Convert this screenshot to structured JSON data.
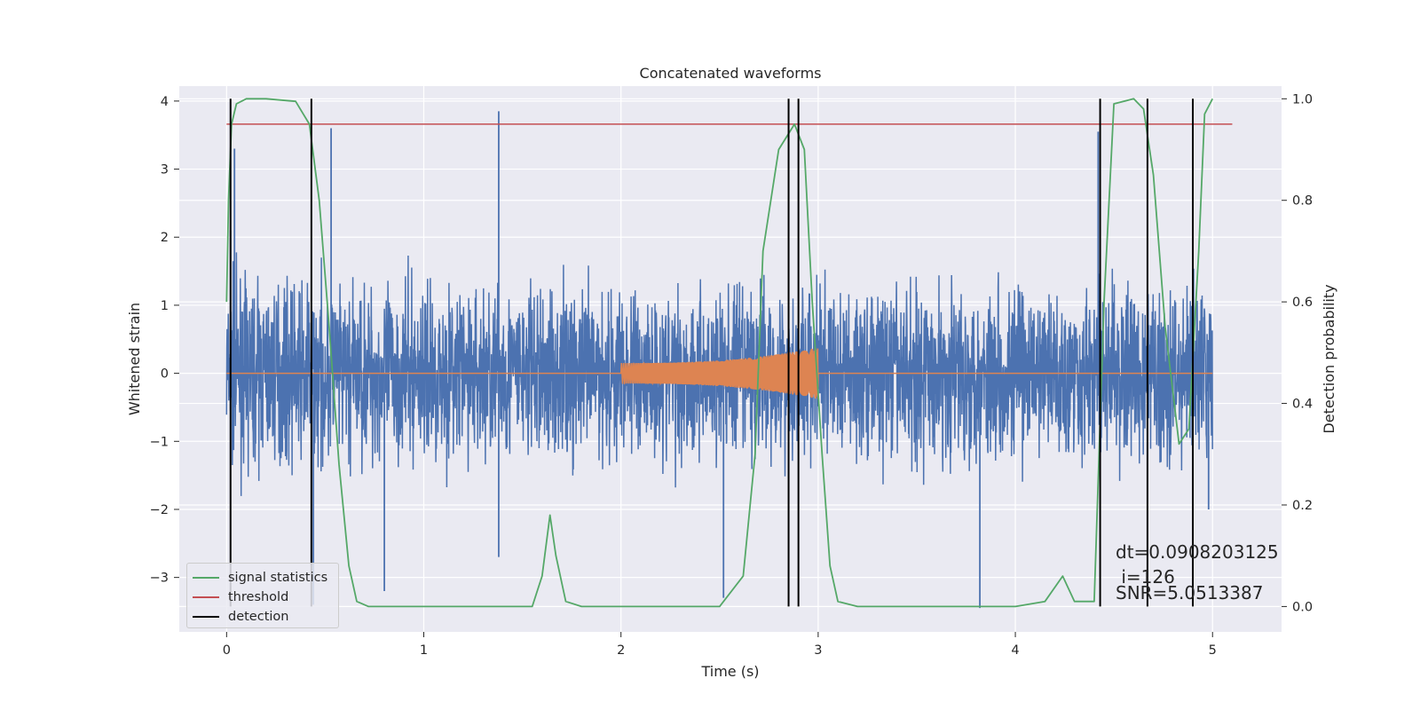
{
  "chart_data": {
    "type": "line",
    "title": "Concatenated waveforms",
    "xlabel": "Time (s)",
    "ylabel": "Whitened strain",
    "y2label": "Detection probability",
    "xlim": [
      -0.24,
      5.35
    ],
    "ylim": [
      -3.8,
      4.22
    ],
    "y2lim": [
      -0.05,
      1.025
    ],
    "xticks": [
      "0",
      "1",
      "2",
      "3",
      "4",
      "5"
    ],
    "yticks": [
      "−3",
      "−2",
      "−1",
      "0",
      "1",
      "2",
      "3",
      "4"
    ],
    "y2ticks": [
      "0.0",
      "0.2",
      "0.4",
      "0.6",
      "0.8",
      "1.0"
    ],
    "grid": true,
    "legend_position": "lower-left",
    "series": [
      {
        "key": "strain",
        "kind": "noise",
        "axis": "left",
        "color": "#4c72b0",
        "x_range": [
          0,
          5
        ],
        "typical_range": [
          -2.0,
          2.0
        ],
        "spikes": [
          [
            0.02,
            2.1
          ],
          [
            0.04,
            3.3
          ],
          [
            0.53,
            3.6
          ],
          [
            1.38,
            3.85
          ],
          [
            4.42,
            3.55
          ],
          [
            1.38,
            -2.7
          ],
          [
            0.44,
            -3.4
          ],
          [
            0.8,
            -3.2
          ],
          [
            3.82,
            -3.45
          ],
          [
            2.52,
            -3.3
          ],
          [
            4.98,
            -2.0
          ]
        ]
      },
      {
        "key": "template",
        "kind": "chirp",
        "axis": "left",
        "color": "#dd8452",
        "x_range": [
          0,
          5
        ],
        "chirp_range": [
          2.0,
          3.0
        ],
        "amp_start": 0.15,
        "amp_end": 0.38
      },
      {
        "name": "signal statistics",
        "axis": "right",
        "color": "#55a868",
        "points": [
          [
            0.0,
            0.6
          ],
          [
            0.01,
            0.8
          ],
          [
            0.025,
            0.95
          ],
          [
            0.05,
            0.99
          ],
          [
            0.1,
            1.0
          ],
          [
            0.2,
            1.0
          ],
          [
            0.35,
            0.995
          ],
          [
            0.42,
            0.95
          ],
          [
            0.47,
            0.8
          ],
          [
            0.52,
            0.55
          ],
          [
            0.57,
            0.28
          ],
          [
            0.62,
            0.08
          ],
          [
            0.66,
            0.01
          ],
          [
            0.72,
            0.0
          ],
          [
            1.55,
            0.0
          ],
          [
            1.6,
            0.06
          ],
          [
            1.64,
            0.18
          ],
          [
            1.67,
            0.1
          ],
          [
            1.72,
            0.01
          ],
          [
            1.8,
            0.0
          ],
          [
            2.5,
            0.0
          ],
          [
            2.62,
            0.06
          ],
          [
            2.68,
            0.3
          ],
          [
            2.72,
            0.7
          ],
          [
            2.8,
            0.9
          ],
          [
            2.88,
            0.95
          ],
          [
            2.93,
            0.9
          ],
          [
            2.97,
            0.6
          ],
          [
            3.02,
            0.3
          ],
          [
            3.06,
            0.08
          ],
          [
            3.1,
            0.01
          ],
          [
            3.2,
            0.0
          ],
          [
            4.0,
            0.0
          ],
          [
            4.15,
            0.01
          ],
          [
            4.24,
            0.06
          ],
          [
            4.3,
            0.01
          ],
          [
            4.4,
            0.01
          ],
          [
            4.45,
            0.6
          ],
          [
            4.5,
            0.99
          ],
          [
            4.6,
            1.0
          ],
          [
            4.65,
            0.98
          ],
          [
            4.7,
            0.85
          ],
          [
            4.76,
            0.55
          ],
          [
            4.83,
            0.32
          ],
          [
            4.88,
            0.35
          ],
          [
            4.93,
            0.7
          ],
          [
            4.96,
            0.97
          ],
          [
            5.0,
            1.0
          ]
        ]
      },
      {
        "name": "threshold",
        "axis": "right",
        "color": "#c44e52",
        "value": 0.95,
        "x_range": [
          0,
          5.1
        ]
      },
      {
        "name": "detection",
        "axis": "right",
        "color": "#000000",
        "x": [
          0.02,
          0.43,
          2.85,
          2.9,
          4.43,
          4.67,
          4.9
        ],
        "y_range": [
          0,
          1.0
        ]
      }
    ],
    "annotation": [
      "dt=0.0908203125",
      " i=126",
      "SNR=5.0513387"
    ]
  }
}
